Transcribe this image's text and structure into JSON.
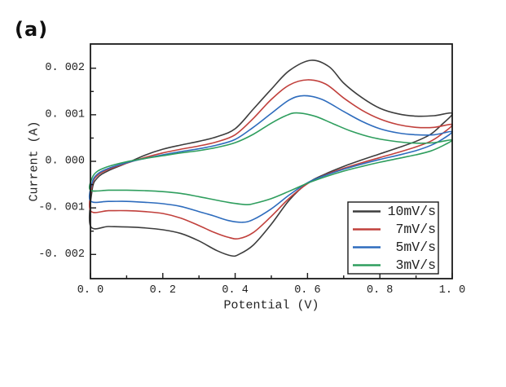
{
  "figure": {
    "panel_label": "(a)",
    "background_color": "#ffffff"
  },
  "chart_data": {
    "type": "line",
    "subtype": "cyclic-voltammogram",
    "title": "",
    "xlabel": "Potential (V)",
    "ylabel": "Current (A)",
    "xlim": [
      0.0,
      1.0
    ],
    "ylim": [
      -0.00252,
      0.00252
    ],
    "grid": false,
    "tick_direction": "in",
    "frame_color": "#1a1a1a",
    "x_major_ticks": [
      0.0,
      0.2,
      0.4,
      0.6,
      0.8,
      1.0
    ],
    "x_major_tick_labels": [
      "0. 0",
      "0. 2",
      "0. 4",
      "0. 6",
      "0. 8",
      "1. 0"
    ],
    "x_minor_ticks": [
      0.1,
      0.3,
      0.5,
      0.7,
      0.9
    ],
    "y_major_ticks": [
      0.002,
      0.001,
      0.0,
      -0.001,
      -0.002
    ],
    "y_major_tick_labels": [
      "0. 002",
      "0. 001",
      "0. 000",
      "-0. 001",
      "-0. 002"
    ],
    "y_minor_ticks": [
      0.0015,
      0.0005,
      -0.0005,
      -0.0015
    ],
    "legend": {
      "position": "lower right",
      "border": true,
      "entries": [
        {
          "label": "10mV/s",
          "color": "#3d3d3d"
        },
        {
          "label": "7mV/s",
          "color": "#c1403c"
        },
        {
          "label": "5mV/s",
          "color": "#2e6cbd"
        },
        {
          "label": "3mV/s",
          "color": "#2f9e5e"
        }
      ]
    },
    "series": [
      {
        "label": "10mV/s",
        "scan_rate_mV_per_s": 10,
        "color": "#3d3d3d",
        "anodic_peak": {
          "potential_V": 0.61,
          "current_A": 0.00217
        },
        "cathodic_peak": {
          "potential_V": 0.4,
          "current_A": -0.00203
        },
        "forward_branch": [
          [
            0,
            -0.00139
          ],
          [
            0.005,
            -0.0006
          ],
          [
            0.02,
            -0.00035
          ],
          [
            0.05,
            -0.0002
          ],
          [
            0.1,
            -4e-05
          ],
          [
            0.15,
            0.00013
          ],
          [
            0.2,
            0.00026
          ],
          [
            0.25,
            0.00035
          ],
          [
            0.3,
            0.00043
          ],
          [
            0.35,
            0.00053
          ],
          [
            0.4,
            0.0007
          ],
          [
            0.45,
            0.00112
          ],
          [
            0.5,
            0.00155
          ],
          [
            0.55,
            0.00195
          ],
          [
            0.61,
            0.00217
          ],
          [
            0.66,
            0.00203
          ],
          [
            0.7,
            0.00168
          ],
          [
            0.75,
            0.00137
          ],
          [
            0.8,
            0.00114
          ],
          [
            0.85,
            0.00102
          ],
          [
            0.9,
            0.00097
          ],
          [
            0.95,
            0.00098
          ],
          [
            1.0,
            0.00103
          ]
        ],
        "reverse_branch": [
          [
            1.0,
            0.00103
          ],
          [
            0.97,
            0.00078
          ],
          [
            0.94,
            0.00058
          ],
          [
            0.9,
            0.00043
          ],
          [
            0.85,
            0.00029
          ],
          [
            0.8,
            0.00016
          ],
          [
            0.75,
            3e-05
          ],
          [
            0.7,
            -0.00011
          ],
          [
            0.65,
            -0.00027
          ],
          [
            0.6,
            -0.00047
          ],
          [
            0.55,
            -0.00083
          ],
          [
            0.5,
            -0.00135
          ],
          [
            0.45,
            -0.0018
          ],
          [
            0.41,
            -0.002
          ],
          [
            0.39,
            -0.00203
          ],
          [
            0.35,
            -0.00192
          ],
          [
            0.3,
            -0.00171
          ],
          [
            0.25,
            -0.00155
          ],
          [
            0.2,
            -0.00147
          ],
          [
            0.15,
            -0.00143
          ],
          [
            0.1,
            -0.00141
          ],
          [
            0.05,
            -0.0014
          ],
          [
            0.0,
            -0.00139
          ]
        ]
      },
      {
        "label": "7mV/s",
        "scan_rate_mV_per_s": 7,
        "color": "#c1403c",
        "anodic_peak": {
          "potential_V": 0.6,
          "current_A": 0.00175
        },
        "cathodic_peak": {
          "potential_V": 0.41,
          "current_A": -0.00166
        },
        "forward_branch": [
          [
            0,
            -0.00106
          ],
          [
            0.005,
            -0.0005
          ],
          [
            0.02,
            -0.0003
          ],
          [
            0.05,
            -0.00017
          ],
          [
            0.1,
            -4e-05
          ],
          [
            0.15,
            8e-05
          ],
          [
            0.2,
            0.00018
          ],
          [
            0.25,
            0.00026
          ],
          [
            0.3,
            0.00033
          ],
          [
            0.35,
            0.00042
          ],
          [
            0.4,
            0.00057
          ],
          [
            0.45,
            0.00092
          ],
          [
            0.5,
            0.00133
          ],
          [
            0.55,
            0.00164
          ],
          [
            0.6,
            0.00175
          ],
          [
            0.65,
            0.00166
          ],
          [
            0.7,
            0.00136
          ],
          [
            0.75,
            0.0011
          ],
          [
            0.8,
            0.00091
          ],
          [
            0.85,
            0.00079
          ],
          [
            0.9,
            0.00073
          ],
          [
            0.95,
            0.00073
          ],
          [
            1.0,
            0.00079
          ]
        ],
        "reverse_branch": [
          [
            1.0,
            0.00079
          ],
          [
            0.97,
            0.00058
          ],
          [
            0.94,
            0.00043
          ],
          [
            0.9,
            0.00031
          ],
          [
            0.85,
            0.00019
          ],
          [
            0.8,
            8e-05
          ],
          [
            0.75,
            -3e-05
          ],
          [
            0.7,
            -0.00015
          ],
          [
            0.65,
            -0.00029
          ],
          [
            0.6,
            -0.00048
          ],
          [
            0.55,
            -0.00079
          ],
          [
            0.5,
            -0.00118
          ],
          [
            0.45,
            -0.00153
          ],
          [
            0.41,
            -0.00166
          ],
          [
            0.38,
            -0.00163
          ],
          [
            0.34,
            -0.00152
          ],
          [
            0.3,
            -0.00138
          ],
          [
            0.25,
            -0.00122
          ],
          [
            0.2,
            -0.00112
          ],
          [
            0.15,
            -0.00108
          ],
          [
            0.1,
            -0.00106
          ],
          [
            0.05,
            -0.00106
          ],
          [
            0.0,
            -0.00106
          ]
        ]
      },
      {
        "label": "5mV/s",
        "scan_rate_mV_per_s": 5,
        "color": "#2e6cbd",
        "anodic_peak": {
          "potential_V": 0.59,
          "current_A": 0.00141
        },
        "cathodic_peak": {
          "potential_V": 0.42,
          "current_A": -0.00131
        },
        "forward_branch": [
          [
            0,
            -0.00085
          ],
          [
            0.005,
            -0.00045
          ],
          [
            0.02,
            -0.00027
          ],
          [
            0.05,
            -0.00015
          ],
          [
            0.1,
            -3e-05
          ],
          [
            0.15,
            6e-05
          ],
          [
            0.2,
            0.00014
          ],
          [
            0.25,
            0.00021
          ],
          [
            0.3,
            0.00027
          ],
          [
            0.35,
            0.00035
          ],
          [
            0.4,
            0.00047
          ],
          [
            0.45,
            0.00073
          ],
          [
            0.5,
            0.00103
          ],
          [
            0.55,
            0.00132
          ],
          [
            0.59,
            0.00141
          ],
          [
            0.64,
            0.00133
          ],
          [
            0.7,
            0.00107
          ],
          [
            0.75,
            0.00086
          ],
          [
            0.8,
            0.0007
          ],
          [
            0.85,
            0.00061
          ],
          [
            0.9,
            0.00057
          ],
          [
            0.95,
            0.00057
          ],
          [
            1.0,
            0.00064
          ]
        ],
        "reverse_branch": [
          [
            1.0,
            0.00064
          ],
          [
            0.97,
            0.00046
          ],
          [
            0.94,
            0.00034
          ],
          [
            0.9,
            0.00023
          ],
          [
            0.85,
            0.00013
          ],
          [
            0.8,
            4e-05
          ],
          [
            0.75,
            -6e-05
          ],
          [
            0.7,
            -0.00017
          ],
          [
            0.65,
            -0.0003
          ],
          [
            0.6,
            -0.00046
          ],
          [
            0.55,
            -0.00072
          ],
          [
            0.5,
            -0.00102
          ],
          [
            0.45,
            -0.00125
          ],
          [
            0.42,
            -0.00131
          ],
          [
            0.38,
            -0.00127
          ],
          [
            0.34,
            -0.00117
          ],
          [
            0.3,
            -0.00108
          ],
          [
            0.25,
            -0.00097
          ],
          [
            0.2,
            -0.00091
          ],
          [
            0.15,
            -0.00088
          ],
          [
            0.1,
            -0.00086
          ],
          [
            0.05,
            -0.00086
          ],
          [
            0.0,
            -0.00085
          ]
        ]
      },
      {
        "label": "3mV/s",
        "scan_rate_mV_per_s": 3,
        "color": "#2f9e5e",
        "anodic_peak": {
          "potential_V": 0.57,
          "current_A": 0.00104
        },
        "cathodic_peak": {
          "potential_V": 0.43,
          "current_A": -0.00093
        },
        "forward_branch": [
          [
            0,
            -0.00062
          ],
          [
            0.005,
            -0.00035
          ],
          [
            0.02,
            -0.00021
          ],
          [
            0.05,
            -0.00011
          ],
          [
            0.1,
            -1e-05
          ],
          [
            0.15,
            6e-05
          ],
          [
            0.2,
            0.00012
          ],
          [
            0.25,
            0.00018
          ],
          [
            0.3,
            0.00023
          ],
          [
            0.35,
            0.0003
          ],
          [
            0.4,
            0.0004
          ],
          [
            0.45,
            0.00058
          ],
          [
            0.5,
            0.00082
          ],
          [
            0.54,
            0.00098
          ],
          [
            0.57,
            0.00104
          ],
          [
            0.62,
            0.00097
          ],
          [
            0.67,
            0.00081
          ],
          [
            0.72,
            0.00065
          ],
          [
            0.78,
            0.00051
          ],
          [
            0.85,
            0.00042
          ],
          [
            0.9,
            0.00039
          ],
          [
            0.95,
            0.0004
          ],
          [
            1.0,
            0.00046
          ]
        ],
        "reverse_branch": [
          [
            1.0,
            0.00046
          ],
          [
            0.97,
            0.00032
          ],
          [
            0.94,
            0.00022
          ],
          [
            0.9,
            0.00014
          ],
          [
            0.85,
            6e-05
          ],
          [
            0.8,
            -2e-05
          ],
          [
            0.75,
            -0.00011
          ],
          [
            0.7,
            -0.00021
          ],
          [
            0.65,
            -0.00033
          ],
          [
            0.6,
            -0.00047
          ],
          [
            0.55,
            -0.00064
          ],
          [
            0.5,
            -0.0008
          ],
          [
            0.45,
            -0.00091
          ],
          [
            0.43,
            -0.00093
          ],
          [
            0.38,
            -0.00088
          ],
          [
            0.3,
            -0.00076
          ],
          [
            0.25,
            -0.00069
          ],
          [
            0.2,
            -0.00065
          ],
          [
            0.15,
            -0.00063
          ],
          [
            0.1,
            -0.00062
          ],
          [
            0.05,
            -0.00062
          ],
          [
            0.0,
            -0.00062
          ]
        ]
      }
    ]
  }
}
